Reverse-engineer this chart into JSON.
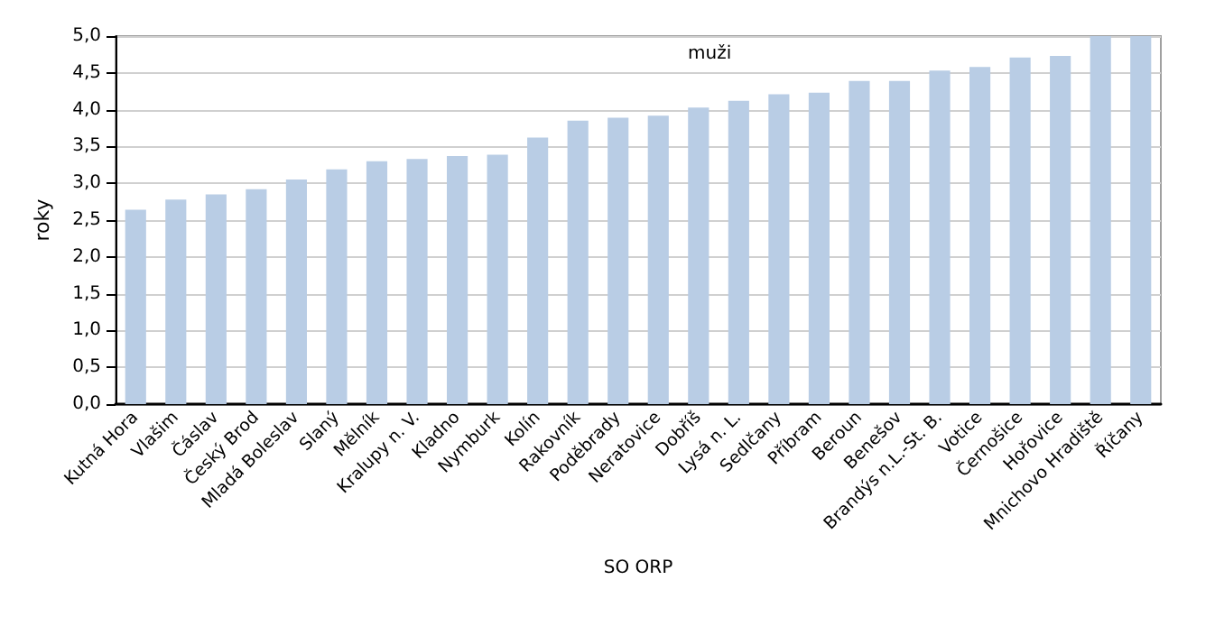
{
  "chart_data": {
    "type": "bar",
    "title": "muži",
    "xlabel": "SO ORP",
    "ylabel": "roky",
    "categories": [
      "Kutná Hora",
      "Vlašim",
      "Čáslav",
      "Český Brod",
      "Mladá Boleslav",
      "Slaný",
      "Mělník",
      "Kralupy n. V.",
      "Kladno",
      "Nymburk",
      "Kolín",
      "Rakovník",
      "Poděbrady",
      "Neratovice",
      "Dobříš",
      "Lysá n. L.",
      "Sedlčany",
      "Příbram",
      "Beroun",
      "Benešov",
      "Brandýs n.L.-St. B.",
      "Votice",
      "Černošice",
      "Hořovice",
      "Mnichovo Hradiště",
      "Říčany"
    ],
    "values": [
      2.64,
      2.78,
      2.85,
      2.92,
      3.05,
      3.19,
      3.3,
      3.33,
      3.37,
      3.39,
      3.62,
      3.85,
      3.89,
      3.92,
      4.03,
      4.12,
      4.21,
      4.23,
      4.39,
      4.39,
      4.53,
      4.58,
      4.71,
      4.73,
      5.0,
      5.0
    ],
    "color": "#b9cde5",
    "ylim": [
      0,
      5
    ],
    "yticks": [
      {
        "value": 0,
        "label": "0,0"
      },
      {
        "value": 0.5,
        "label": "0,5"
      },
      {
        "value": 1,
        "label": "1,0"
      },
      {
        "value": 1.5,
        "label": "1,5"
      },
      {
        "value": 2,
        "label": "2,0"
      },
      {
        "value": 2.5,
        "label": "2,5"
      },
      {
        "value": 3,
        "label": "3,0"
      },
      {
        "value": 3.5,
        "label": "3,5"
      },
      {
        "value": 4,
        "label": "4,0"
      },
      {
        "value": 4.5,
        "label": "4,5"
      },
      {
        "value": 5,
        "label": "5,0"
      }
    ],
    "grid": "y"
  }
}
